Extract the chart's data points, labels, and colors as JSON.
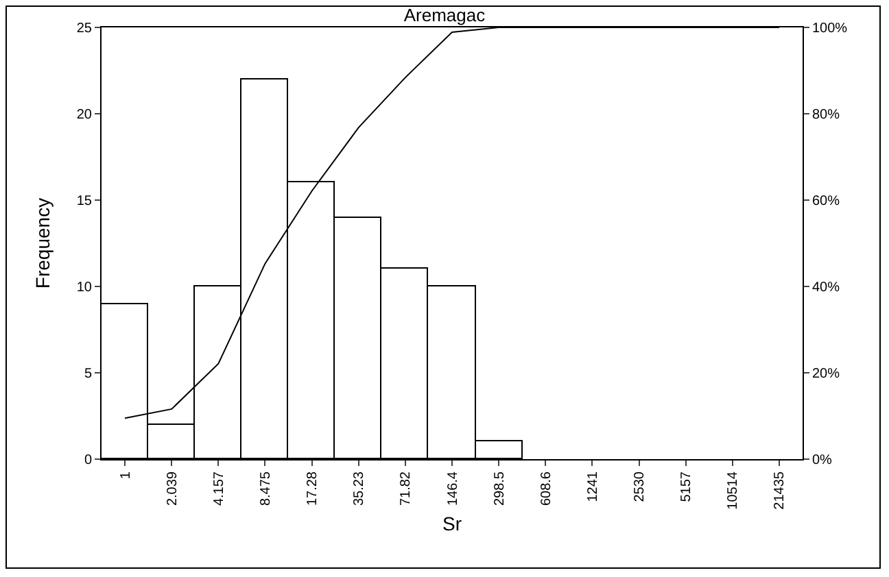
{
  "chart_data": {
    "type": "bar",
    "title": "Aremagac",
    "xlabel": "Sr",
    "ylabel": "Frequency",
    "categories": [
      "1",
      "2.039",
      "4.157",
      "8.475",
      "17.28",
      "35.23",
      "71.82",
      "146.4",
      "298.5",
      "608.6",
      "1241",
      "2530",
      "5157",
      "10514",
      "21435"
    ],
    "series": [
      {
        "color": "#ffffff",
        "values": [
          9,
          2,
          10,
          22,
          16,
          14,
          11,
          10,
          1,
          0,
          0,
          0,
          0,
          0,
          0
        ]
      },
      {
        "type": "line",
        "axis": "y2",
        "color": "#000000",
        "values": [
          9.5,
          11.6,
          22.1,
          45.3,
          62.1,
          76.8,
          88.4,
          98.9,
          100,
          100,
          100,
          100,
          100,
          100,
          100
        ]
      }
    ],
    "ylim": [
      0,
      25
    ],
    "yticks": [
      0,
      5,
      10,
      15,
      20,
      25
    ],
    "y2lim": [
      0,
      100
    ],
    "y2ticks": [
      {
        "value": 0,
        "label": "0%"
      },
      {
        "value": 20,
        "label": "20%"
      },
      {
        "value": 40,
        "label": "40%"
      },
      {
        "value": 60,
        "label": "60%"
      },
      {
        "value": 80,
        "label": "80%"
      },
      {
        "value": 100,
        "label": "100%"
      }
    ],
    "grid": false,
    "legend": false,
    "marker": "none",
    "line_style": "solid"
  }
}
